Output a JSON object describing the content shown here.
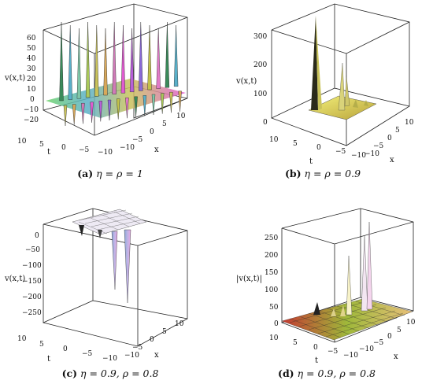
{
  "figure": {
    "panels": [
      {
        "id": "a",
        "caption_label": "(a)",
        "caption_text": "η = ρ = 1",
        "zlabel": "v(x,t)",
        "xlabel": "x",
        "tlabel": "t",
        "z_ticks": [
          "60",
          "50",
          "40",
          "30",
          "20",
          "10",
          "0",
          "−10",
          "−20"
        ],
        "t_ticks": [
          "10",
          "5",
          "0",
          "−5",
          "−10"
        ],
        "x_ticks": [
          "−10",
          "−5",
          "0",
          "5",
          "10"
        ]
      },
      {
        "id": "b",
        "caption_label": "(b)",
        "caption_text": "η = ρ = 0.9",
        "zlabel": "v(x,t)",
        "xlabel": "x",
        "tlabel": "t",
        "z_ticks": [
          "300",
          "200",
          "100",
          "0"
        ],
        "t_ticks": [
          "10",
          "5",
          "0",
          "−5",
          "−10"
        ],
        "x_ticks": [
          "−10",
          "−5",
          "0",
          "5",
          "10"
        ]
      },
      {
        "id": "c",
        "caption_label": "(c)",
        "caption_text": "η = 0.9, ρ = 0.8",
        "zlabel": "v(x,t)",
        "xlabel": "x",
        "tlabel": "t",
        "z_ticks": [
          "0",
          "−50",
          "−100",
          "−150",
          "−200",
          "−250"
        ],
        "t_ticks": [
          "10",
          "5",
          "0",
          "−5",
          "−10"
        ],
        "x_ticks": [
          "−10",
          "−5",
          "0",
          "5",
          "10"
        ]
      },
      {
        "id": "d",
        "caption_label": "(d)",
        "caption_text": "η = 0.9, ρ = 0.8",
        "zlabel": "|v(x,t)|",
        "xlabel": "x",
        "tlabel": "t",
        "z_ticks": [
          "250",
          "200",
          "150",
          "100",
          "50",
          "0"
        ],
        "t_ticks": [
          "10",
          "5",
          "0",
          "−5",
          "−10"
        ],
        "x_ticks": [
          "−10",
          "−5",
          "0",
          "5",
          "10"
        ]
      }
    ]
  }
}
